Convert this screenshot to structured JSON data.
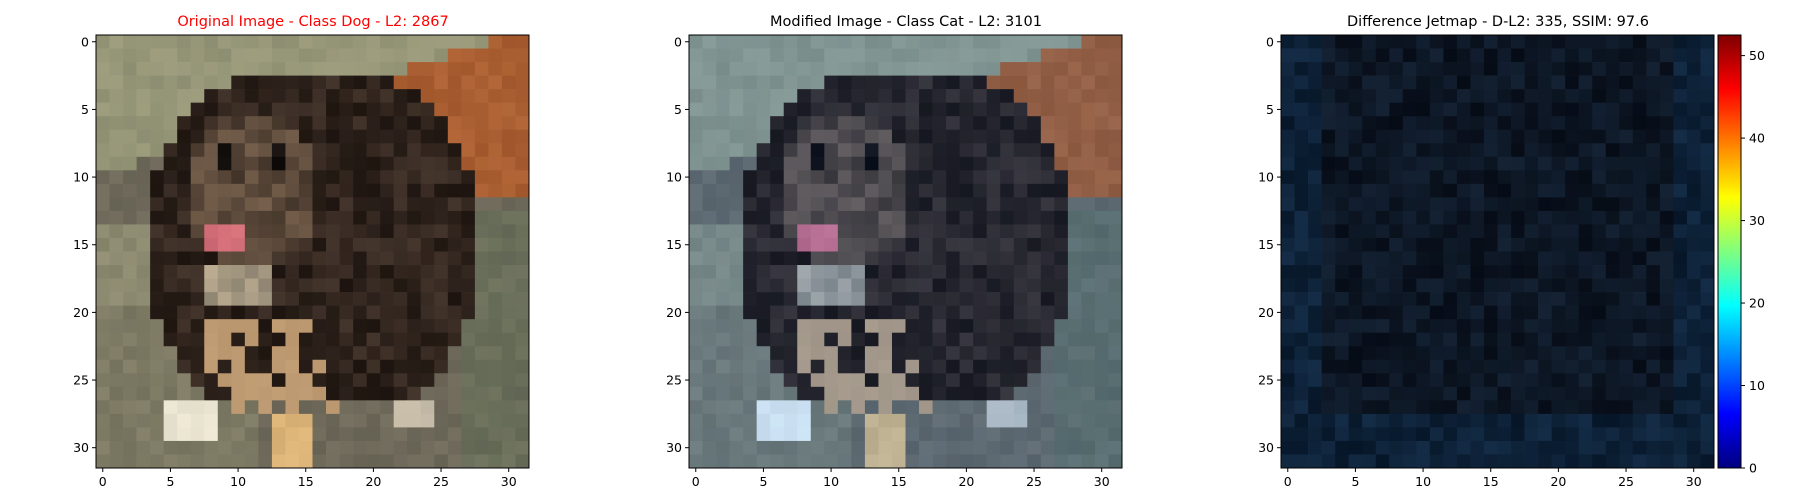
{
  "panels": [
    {
      "title": "Original Image - Class Dog - L2: 2867",
      "title_color": "#ff0000",
      "image": "dog-photo-original-32x32",
      "x_ticks": [
        "0",
        "5",
        "10",
        "15",
        "20",
        "25",
        "30"
      ],
      "y_ticks": [
        "0",
        "5",
        "10",
        "15",
        "20",
        "25",
        "30"
      ]
    },
    {
      "title": "Modified Image - Class Cat - L2: 3101",
      "title_color": "#000000",
      "image": "dog-photo-modified-32x32",
      "x_ticks": [
        "0",
        "5",
        "10",
        "15",
        "20",
        "25",
        "30"
      ],
      "y_ticks": [
        "0",
        "5",
        "10",
        "15",
        "20",
        "25",
        "30"
      ]
    },
    {
      "title": "Difference Jetmap - D-L2: 335, SSIM: 97.6",
      "title_color": "#000000",
      "image": "difference-jetmap-32x32",
      "x_ticks": [
        "0",
        "5",
        "10",
        "15",
        "20",
        "25",
        "30"
      ],
      "y_ticks": [
        "0",
        "5",
        "10",
        "15",
        "20",
        "25",
        "30"
      ]
    }
  ],
  "colorbar": {
    "ticks": [
      "0",
      "10",
      "20",
      "30",
      "40",
      "50"
    ],
    "colors": [
      "#00007f",
      "#0000ff",
      "#007fff",
      "#00ffff",
      "#7fff7f",
      "#ffff00",
      "#ff7f00",
      "#ff0000",
      "#7f0000"
    ]
  }
}
